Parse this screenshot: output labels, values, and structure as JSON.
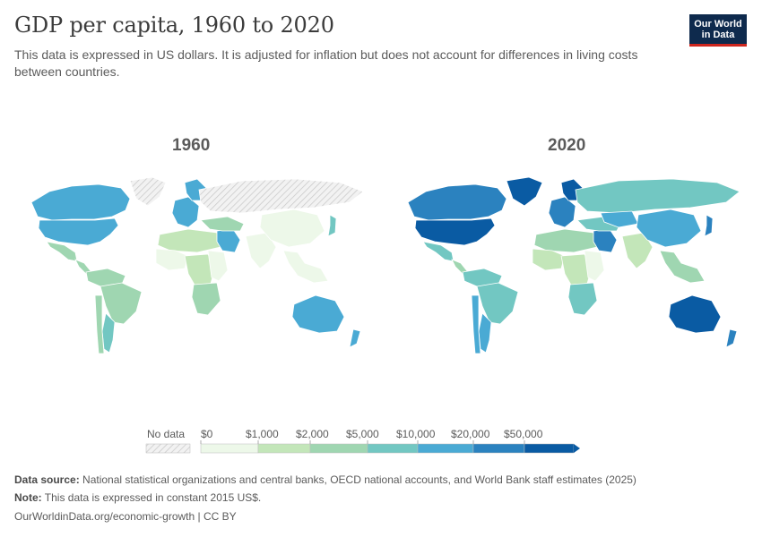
{
  "header": {
    "title": "GDP per capita, 1960 to 2020",
    "subtitle": "This data is expressed in US dollars. It is adjusted for inflation but does not account for differences in living costs between countries.",
    "logo_line1": "Our World",
    "logo_line2": "in Data"
  },
  "maps": [
    {
      "year": "1960"
    },
    {
      "year": "2020"
    }
  ],
  "legend": {
    "no_data_label": "No data",
    "bins": [
      "$0",
      "$1,000",
      "$2,000",
      "$5,000",
      "$10,000",
      "$20,000",
      "$50,000"
    ],
    "colors": [
      "#edf8e9",
      "#c3e6b9",
      "#9fd6b1",
      "#72c7c2",
      "#4aaad4",
      "#2b82bf",
      "#0a5ba3"
    ],
    "no_data_color": "#dddddd"
  },
  "footer": {
    "source_label": "Data source:",
    "source_text": "National statistical organizations and central banks, OECD national accounts, and World Bank staff estimates (2025)",
    "note_label": "Note:",
    "note_text": "This data is expressed in constant 2015 US$.",
    "url": "OurWorldinData.org/economic-growth",
    "license": "| CC BY"
  },
  "chart_data": {
    "type": "choropleth",
    "title": "GDP per capita, 1960 to 2020",
    "unit": "constant 2015 US$",
    "panels": [
      {
        "year": "1960",
        "regions": [
          {
            "name": "Canada",
            "bin": 4
          },
          {
            "name": "Greenland",
            "bin": -1
          },
          {
            "name": "United States",
            "bin": 4
          },
          {
            "name": "Mexico",
            "bin": 2
          },
          {
            "name": "Central America",
            "bin": 2
          },
          {
            "name": "Northern South America",
            "bin": 2
          },
          {
            "name": "Brazil",
            "bin": 2
          },
          {
            "name": "Argentina",
            "bin": 3
          },
          {
            "name": "Chile",
            "bin": 2
          },
          {
            "name": "Western Europe",
            "bin": 4
          },
          {
            "name": "Scandinavia",
            "bin": 4
          },
          {
            "name": "Eastern Europe and USSR",
            "bin": -1
          },
          {
            "name": "North Africa",
            "bin": 1
          },
          {
            "name": "West Africa",
            "bin": 0
          },
          {
            "name": "Central Africa",
            "bin": 1
          },
          {
            "name": "East Africa",
            "bin": 0
          },
          {
            "name": "Southern Africa",
            "bin": 2
          },
          {
            "name": "Saudi Arabia",
            "bin": 4
          },
          {
            "name": "Middle East",
            "bin": 2
          },
          {
            "name": "South Asia",
            "bin": 0
          },
          {
            "name": "China",
            "bin": 0
          },
          {
            "name": "Japan",
            "bin": 3
          },
          {
            "name": "Southeast Asia",
            "bin": 0
          },
          {
            "name": "Australia",
            "bin": 4
          },
          {
            "name": "New Zealand",
            "bin": 4
          }
        ]
      },
      {
        "year": "2020",
        "regions": [
          {
            "name": "Canada",
            "bin": 5
          },
          {
            "name": "Greenland",
            "bin": 6
          },
          {
            "name": "United States",
            "bin": 6
          },
          {
            "name": "Mexico",
            "bin": 3
          },
          {
            "name": "Central America",
            "bin": 2
          },
          {
            "name": "Northern South America",
            "bin": 3
          },
          {
            "name": "Brazil",
            "bin": 3
          },
          {
            "name": "Argentina",
            "bin": 4
          },
          {
            "name": "Chile",
            "bin": 4
          },
          {
            "name": "Western Europe",
            "bin": 5
          },
          {
            "name": "Scandinavia",
            "bin": 6
          },
          {
            "name": "Russia",
            "bin": 3
          },
          {
            "name": "North Africa",
            "bin": 2
          },
          {
            "name": "West Africa",
            "bin": 1
          },
          {
            "name": "Central Africa",
            "bin": 1
          },
          {
            "name": "East Africa",
            "bin": 0
          },
          {
            "name": "Southern Africa",
            "bin": 3
          },
          {
            "name": "Saudi Arabia",
            "bin": 5
          },
          {
            "name": "Middle East",
            "bin": 3
          },
          {
            "name": "Kazakhstan",
            "bin": 4
          },
          {
            "name": "South Asia",
            "bin": 1
          },
          {
            "name": "China",
            "bin": 4
          },
          {
            "name": "Japan",
            "bin": 5
          },
          {
            "name": "Southeast Asia",
            "bin": 2
          },
          {
            "name": "Australia",
            "bin": 6
          },
          {
            "name": "New Zealand",
            "bin": 5
          }
        ]
      }
    ]
  }
}
